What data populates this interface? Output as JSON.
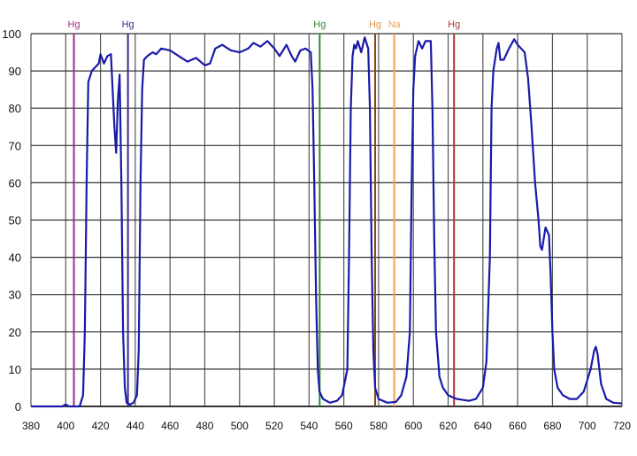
{
  "chart_data": {
    "type": "line",
    "title": "",
    "xlabel": "",
    "ylabel": "",
    "xlim": [
      380,
      720
    ],
    "ylim": [
      0,
      100
    ],
    "grid": true,
    "x_ticks": [
      380,
      400,
      420,
      440,
      460,
      480,
      500,
      520,
      540,
      560,
      580,
      600,
      620,
      640,
      660,
      680,
      700,
      720
    ],
    "y_ticks": [
      0,
      10,
      20,
      30,
      40,
      50,
      60,
      70,
      80,
      90,
      100
    ],
    "series": [
      {
        "name": "transmission",
        "color": "#1a1aa8",
        "points": [
          [
            380,
            0
          ],
          [
            398,
            0
          ],
          [
            400,
            0.5
          ],
          [
            402,
            0
          ],
          [
            408,
            0
          ],
          [
            410,
            3
          ],
          [
            411,
            20
          ],
          [
            412,
            60
          ],
          [
            413,
            87
          ],
          [
            415,
            90
          ],
          [
            417,
            91
          ],
          [
            419,
            92
          ],
          [
            420,
            94.5
          ],
          [
            422,
            92
          ],
          [
            424,
            94
          ],
          [
            426,
            94.5
          ],
          [
            427,
            85
          ],
          [
            428,
            75
          ],
          [
            429,
            68
          ],
          [
            430,
            82
          ],
          [
            431,
            89
          ],
          [
            432,
            60
          ],
          [
            433,
            20
          ],
          [
            434,
            5
          ],
          [
            435,
            1
          ],
          [
            437,
            0.5
          ],
          [
            439,
            1
          ],
          [
            441,
            3
          ],
          [
            442,
            15
          ],
          [
            443,
            60
          ],
          [
            444,
            85
          ],
          [
            445,
            93
          ],
          [
            447,
            94
          ],
          [
            450,
            95
          ],
          [
            452,
            94.5
          ],
          [
            455,
            96
          ],
          [
            460,
            95.5
          ],
          [
            465,
            94
          ],
          [
            470,
            92.5
          ],
          [
            475,
            93.5
          ],
          [
            480,
            91.5
          ],
          [
            483,
            92
          ],
          [
            486,
            96
          ],
          [
            490,
            97
          ],
          [
            495,
            95.5
          ],
          [
            500,
            95
          ],
          [
            505,
            96
          ],
          [
            508,
            97.5
          ],
          [
            512,
            96.5
          ],
          [
            516,
            98
          ],
          [
            520,
            96
          ],
          [
            523,
            94
          ],
          [
            527,
            97
          ],
          [
            530,
            94
          ],
          [
            532,
            92.5
          ],
          [
            535,
            95.5
          ],
          [
            538,
            96
          ],
          [
            541,
            95
          ],
          [
            542,
            85
          ],
          [
            543,
            60
          ],
          [
            544,
            30
          ],
          [
            545,
            10
          ],
          [
            546,
            4
          ],
          [
            548,
            2
          ],
          [
            552,
            1
          ],
          [
            556,
            1.5
          ],
          [
            559,
            3
          ],
          [
            562,
            10
          ],
          [
            563,
            40
          ],
          [
            564,
            80
          ],
          [
            565,
            94
          ],
          [
            566,
            97
          ],
          [
            567,
            96
          ],
          [
            568,
            98
          ],
          [
            570,
            95
          ],
          [
            572,
            99
          ],
          [
            574,
            96
          ],
          [
            575,
            80
          ],
          [
            576,
            40
          ],
          [
            577,
            15
          ],
          [
            578,
            5
          ],
          [
            580,
            2
          ],
          [
            585,
            1
          ],
          [
            590,
            1.2
          ],
          [
            593,
            3
          ],
          [
            596,
            8
          ],
          [
            598,
            20
          ],
          [
            599,
            60
          ],
          [
            600,
            85
          ],
          [
            601,
            94
          ],
          [
            603,
            98
          ],
          [
            605,
            96
          ],
          [
            607,
            98
          ],
          [
            610,
            98
          ],
          [
            611,
            80
          ],
          [
            612,
            45
          ],
          [
            613,
            20
          ],
          [
            615,
            8
          ],
          [
            617,
            5
          ],
          [
            620,
            3
          ],
          [
            625,
            2
          ],
          [
            632,
            1.5
          ],
          [
            636,
            2
          ],
          [
            640,
            5
          ],
          [
            642,
            12
          ],
          [
            644,
            40
          ],
          [
            645,
            80
          ],
          [
            646,
            90
          ],
          [
            648,
            96
          ],
          [
            649,
            97.5
          ],
          [
            650,
            93
          ],
          [
            652,
            93
          ],
          [
            655,
            96
          ],
          [
            658,
            98.5
          ],
          [
            660,
            97
          ],
          [
            662,
            96
          ],
          [
            664,
            95
          ],
          [
            666,
            88
          ],
          [
            668,
            75
          ],
          [
            670,
            60
          ],
          [
            672,
            50
          ],
          [
            673,
            43
          ],
          [
            674,
            42
          ],
          [
            675,
            45
          ],
          [
            676,
            48
          ],
          [
            678,
            46
          ],
          [
            679,
            35
          ],
          [
            680,
            20
          ],
          [
            681,
            10
          ],
          [
            683,
            5
          ],
          [
            686,
            3
          ],
          [
            690,
            2
          ],
          [
            694,
            2
          ],
          [
            698,
            4
          ],
          [
            702,
            10
          ],
          [
            704,
            15
          ],
          [
            705,
            16
          ],
          [
            706,
            14
          ],
          [
            708,
            6
          ],
          [
            711,
            2
          ],
          [
            715,
            1
          ],
          [
            720,
            0.8
          ]
        ]
      }
    ],
    "emission_lines": [
      {
        "label": "Hg",
        "wavelength": 404.7,
        "color": "#9a2f86"
      },
      {
        "label": "Hg",
        "wavelength": 435.8,
        "color": "#3b2a8e"
      },
      {
        "label": "Hg",
        "wavelength": 546.1,
        "color": "#2e8b2e"
      },
      {
        "label": "Hg",
        "wavelength": 578.0,
        "color": "#8b4513",
        "label_color": "#e0904a"
      },
      {
        "label": "Na",
        "wavelength": 589.0,
        "color": "#f0a050"
      },
      {
        "label": "Hg",
        "wavelength": 623.4,
        "color": "#b03535"
      }
    ]
  }
}
